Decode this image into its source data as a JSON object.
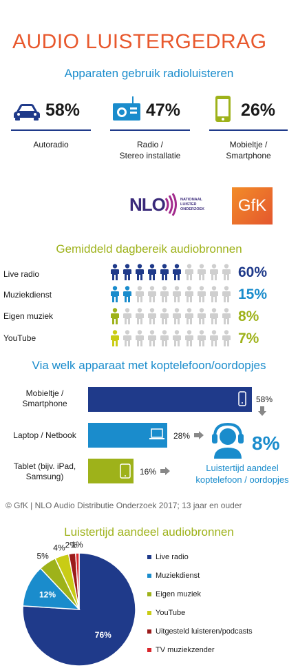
{
  "title": "AUDIO LUISTERGEDRAG",
  "section1": {
    "title": "Apparaten gebruik radioluisteren",
    "devices": [
      {
        "pct": "58%",
        "label_line1": "Autoradio",
        "label_line2": "",
        "icon": "car-icon"
      },
      {
        "pct": "47%",
        "label_line1": "Radio /",
        "label_line2": "Stereo installatie",
        "icon": "radio-icon"
      },
      {
        "pct": "26%",
        "label_line1": "Mobieltje /",
        "label_line2": "Smartphone",
        "icon": "smartphone-icon"
      }
    ]
  },
  "logos": {
    "nlo_text": "NLO",
    "nlo_sub1": "NATIONAAL",
    "nlo_sub2": "LUISTER",
    "nlo_sub3": "ONDERZOEK",
    "gfk_text": "GfK"
  },
  "section2": {
    "title": "Gemiddeld dagbereik audiobronnen",
    "rows": [
      {
        "label": "Live radio",
        "pct": "60%",
        "value": 60,
        "color": "#1f3a8a"
      },
      {
        "label": "Muziekdienst",
        "pct": "15%",
        "value": 15,
        "color": "#1a8ccc"
      },
      {
        "label": "Eigen muziek",
        "pct": "8%",
        "value": 8,
        "color": "#9eb21a"
      },
      {
        "label": "YouTube",
        "pct": "7%",
        "value": 7,
        "color": "#c9cc15"
      }
    ]
  },
  "section3": {
    "title": "Via welk apparaat met koptelefoon/oordopjes",
    "bars": [
      {
        "label_line1": "Mobieltje /",
        "label_line2": "Smartphone",
        "pct": "58%",
        "value": 58,
        "color": "#1f3a8a",
        "icon": "smartphone-icon"
      },
      {
        "label_line1": "Laptop / Netbook",
        "label_line2": "",
        "pct": "28%",
        "value": 28,
        "color": "#1a8ccc",
        "icon": "laptop-icon"
      },
      {
        "label_line1": "Tablet (bijv. iPad,",
        "label_line2": "Samsung)",
        "pct": "16%",
        "value": 16,
        "color": "#9eb21a",
        "icon": "tablet-icon"
      }
    ],
    "share_pct": "8%",
    "share_label1": "Luistertijd aandeel",
    "share_label2": "koptelefoon / oordopjes"
  },
  "footer": "© GfK | NLO Audio Distributie Onderzoek 2017;  13 jaar en ouder",
  "chart_data": {
    "type": "pie",
    "title": "Luistertijd aandeel audiobronnen",
    "slices": [
      {
        "name": "Live radio",
        "value": 76,
        "label": "76%",
        "color": "#1f3a8a"
      },
      {
        "name": "Muziekdienst",
        "value": 12,
        "label": "12%",
        "color": "#1a8ccc"
      },
      {
        "name": "Eigen muziek",
        "value": 5,
        "label": "5%",
        "color": "#9eb21a"
      },
      {
        "name": "YouTube",
        "value": 4,
        "label": "4%",
        "color": "#c9cc15"
      },
      {
        "name": "Uitgesteld luisteren/podcasts",
        "value": 2,
        "label": "2%",
        "color": "#9b1b1b"
      },
      {
        "name": "TV muziekzender",
        "value": 1,
        "label": "1%",
        "color": "#d9262b"
      }
    ],
    "legend_position": "right"
  }
}
